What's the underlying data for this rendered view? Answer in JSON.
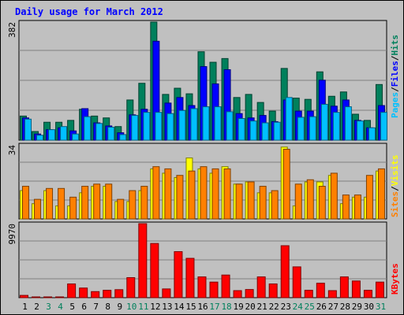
{
  "title": "Daily usage for March 2012",
  "colors": {
    "hits": "#00805c",
    "files": "#0000ff",
    "pages": "#00c0ff",
    "visits": "#ffff00",
    "sites": "#ff8000",
    "kbytes": "#ff0000",
    "title": "#0000ff",
    "weekend_day": "#00805c",
    "weekday": "#000000",
    "plot_bg": "#c0c0c0",
    "frame_bg": "#c0c0c0"
  },
  "chart_data": [
    {
      "type": "bar",
      "panel": "hits-files-pages",
      "ymax_label": "382",
      "ylim": [
        0,
        382
      ],
      "grid": true,
      "legend": [
        "Pages",
        "/",
        "Files",
        "/",
        "Hits"
      ],
      "categories": [
        "1",
        "2",
        "3",
        "4",
        "5",
        "6",
        "7",
        "8",
        "9",
        "10",
        "11",
        "12",
        "13",
        "14",
        "15",
        "16",
        "17",
        "18",
        "19",
        "20",
        "21",
        "22",
        "23",
        "24",
        "25",
        "26",
        "27",
        "28",
        "29",
        "30",
        "31"
      ],
      "weekend": [
        3,
        4,
        10,
        11,
        17,
        18,
        24,
        25,
        31
      ],
      "series": [
        {
          "name": "Hits",
          "values": [
            78,
            28,
            58,
            58,
            64,
            100,
            78,
            72,
            44,
            130,
            184,
            382,
            148,
            168,
            150,
            286,
            252,
            264,
            138,
            148,
            122,
            94,
            232,
            136,
            132,
            221,
            142,
            156,
            84,
            64,
            180
          ]
        },
        {
          "name": "Files",
          "values": [
            72,
            20,
            34,
            40,
            30,
            102,
            56,
            46,
            24,
            82,
            100,
            320,
            120,
            138,
            112,
            238,
            182,
            228,
            86,
            72,
            80,
            60,
            130,
            94,
            94,
            194,
            110,
            130,
            64,
            40,
            112
          ]
        },
        {
          "name": "Pages",
          "values": [
            68,
            16,
            34,
            44,
            20,
            76,
            54,
            42,
            18,
            80,
            90,
            90,
            86,
            96,
            102,
            108,
            108,
            92,
            70,
            62,
            56,
            58,
            138,
            74,
            76,
            116,
            90,
            108,
            62,
            40,
            90
          ]
        }
      ]
    },
    {
      "type": "bar",
      "panel": "visits-sites",
      "ymax_label": "34",
      "ylim": [
        0,
        34
      ],
      "grid": true,
      "legend": [
        "Sites",
        "/",
        "Visits"
      ],
      "categories": [
        "1",
        "2",
        "3",
        "4",
        "5",
        "6",
        "7",
        "8",
        "9",
        "10",
        "11",
        "12",
        "13",
        "14",
        "15",
        "16",
        "17",
        "18",
        "19",
        "20",
        "21",
        "22",
        "23",
        "24",
        "25",
        "26",
        "27",
        "28",
        "29",
        "30",
        "31"
      ],
      "series": [
        {
          "name": "Visits",
          "values": [
            13,
            7,
            13,
            6,
            6,
            12,
            15,
            15,
            8,
            8,
            13,
            23,
            21,
            19,
            28,
            23,
            21,
            24,
            16,
            17,
            12,
            12,
            33,
            6,
            17,
            17,
            20,
            7,
            10,
            10,
            22
          ]
        },
        {
          "name": "Sites",
          "values": [
            15,
            9,
            14,
            14,
            10,
            15,
            16,
            16,
            9,
            13,
            15,
            24,
            23,
            20,
            22,
            24,
            23,
            23,
            16,
            17,
            15,
            13,
            32,
            16,
            18,
            15,
            21,
            11,
            11,
            20,
            23
          ]
        }
      ]
    },
    {
      "type": "bar",
      "panel": "kbytes",
      "ymax_label": "9970",
      "ylim": [
        0,
        9970
      ],
      "grid": true,
      "legend": [
        "KBytes"
      ],
      "categories": [
        "1",
        "2",
        "3",
        "4",
        "5",
        "6",
        "7",
        "8",
        "9",
        "10",
        "11",
        "12",
        "13",
        "14",
        "15",
        "16",
        "17",
        "18",
        "19",
        "20",
        "21",
        "22",
        "23",
        "24",
        "25",
        "26",
        "27",
        "28",
        "29",
        "30",
        "31"
      ],
      "series": [
        {
          "name": "KBytes",
          "values": [
            310,
            60,
            40,
            40,
            1850,
            1300,
            820,
            1000,
            1080,
            2700,
            9970,
            7300,
            1180,
            6200,
            5300,
            2800,
            2100,
            3050,
            950,
            1100,
            2800,
            1850,
            7000,
            4150,
            1000,
            1950,
            950,
            2800,
            2250,
            1000,
            2100
          ]
        }
      ]
    }
  ]
}
